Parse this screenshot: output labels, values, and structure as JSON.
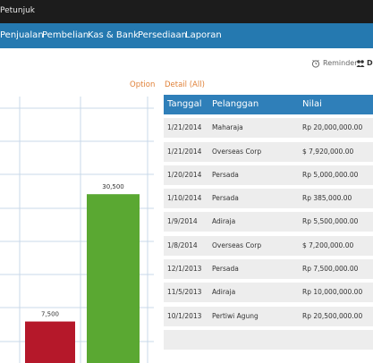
{
  "titlebar": {
    "text": "Petunjuk"
  },
  "nav": {
    "items": [
      "Penjualan",
      "Pembelian",
      "Kas & Bank",
      "Persediaan",
      "Laporan"
    ]
  },
  "actions": {
    "reminder": "Reminder",
    "second": "D"
  },
  "links": {
    "option": "Option",
    "detail": "Detail (All)"
  },
  "table": {
    "headers": [
      "Tanggal",
      "Pelanggan",
      "Nilai"
    ],
    "rows": [
      [
        "1/21/2014",
        "Maharaja",
        "Rp 20,000,000.00"
      ],
      [
        "1/21/2014",
        "Overseas Corp",
        "$ 7,920,000.00"
      ],
      [
        "1/20/2014",
        "Persada",
        "Rp 5,000,000.00"
      ],
      [
        "1/10/2014",
        "Persada",
        "Rp 385,000.00"
      ],
      [
        "1/9/2014",
        "Adiraja",
        "Rp 5,500,000.00"
      ],
      [
        "1/8/2014",
        "Overseas Corp",
        "$ 7,200,000.00"
      ],
      [
        "12/1/2013",
        "Persada",
        "Rp 7,500,000.00"
      ],
      [
        "11/5/2013",
        "Adiraja",
        "Rp 10,000,000.00"
      ],
      [
        "10/1/2013",
        "Pertiwi Agung",
        "Rp 20,500,000.00"
      ]
    ]
  },
  "chart_data": {
    "type": "bar",
    "categories": [
      "",
      ""
    ],
    "values": [
      7500,
      30500
    ],
    "data_labels": [
      "7,500",
      "30,500"
    ],
    "colors": [
      "#b5182a",
      "#5aa832"
    ],
    "grid": true,
    "ylim": [
      0,
      42000
    ]
  }
}
